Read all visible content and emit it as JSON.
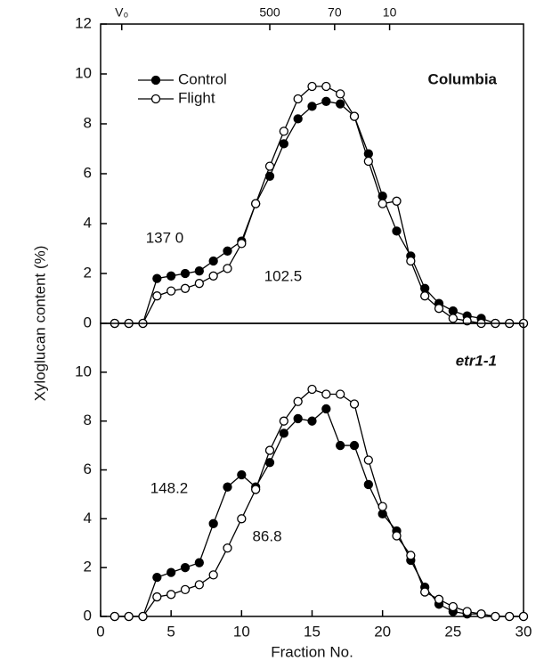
{
  "chart_data": [
    {
      "type": "line",
      "title": "Columbia",
      "ylabel": "Xyloglucan content (%)",
      "x": [
        1,
        2,
        3,
        4,
        5,
        6,
        7,
        8,
        9,
        10,
        11,
        12,
        13,
        14,
        15,
        16,
        17,
        18,
        19,
        20,
        21,
        22,
        23,
        24,
        25,
        26,
        27,
        28,
        29,
        30
      ],
      "series": [
        {
          "name": "Control",
          "color": "#000000",
          "values": [
            0,
            0,
            0,
            1.8,
            1.9,
            2.0,
            2.1,
            2.5,
            2.9,
            3.3,
            4.8,
            5.9,
            7.2,
            8.2,
            8.7,
            8.9,
            8.8,
            8.3,
            6.8,
            5.1,
            3.7,
            2.7,
            1.4,
            0.8,
            0.5,
            0.3,
            0.2,
            0,
            0,
            0
          ]
        },
        {
          "name": "Flight",
          "color": "#ffffff",
          "values": [
            0,
            0,
            0,
            1.1,
            1.3,
            1.4,
            1.6,
            1.9,
            2.2,
            3.2,
            4.8,
            6.3,
            7.7,
            9.0,
            9.5,
            9.5,
            9.2,
            8.3,
            6.5,
            4.8,
            4.9,
            2.5,
            1.1,
            0.6,
            0.2,
            0.1,
            0,
            0,
            0,
            0
          ]
        }
      ],
      "annotations": [
        "137 0",
        "102.5"
      ],
      "xlim": [
        0,
        30
      ],
      "ylim": [
        0,
        12
      ],
      "yticks": [
        0,
        2,
        4,
        6,
        8,
        10,
        12
      ],
      "top_ticks": [
        {
          "value": 1.5,
          "label": "V₀"
        },
        {
          "value": 12,
          "label": "500"
        },
        {
          "value": 16.6,
          "label": "70"
        },
        {
          "value": 20.5,
          "label": "10"
        }
      ],
      "legend": "upper left"
    },
    {
      "type": "line",
      "title": "etr1-1",
      "xlabel": "Fraction No.",
      "x": [
        1,
        2,
        3,
        4,
        5,
        6,
        7,
        8,
        9,
        10,
        11,
        12,
        13,
        14,
        15,
        16,
        17,
        18,
        19,
        20,
        21,
        22,
        23,
        24,
        25,
        26,
        27,
        28,
        29,
        30
      ],
      "series": [
        {
          "name": "Control",
          "color": "#000000",
          "values": [
            0,
            0,
            0,
            1.6,
            1.8,
            2.0,
            2.2,
            3.8,
            5.3,
            5.8,
            5.3,
            6.3,
            7.5,
            8.1,
            8.0,
            8.5,
            7.0,
            7.0,
            5.4,
            4.2,
            3.5,
            2.3,
            1.2,
            0.5,
            0.2,
            0.1,
            0.1,
            0,
            0,
            0
          ]
        },
        {
          "name": "Flight",
          "color": "#ffffff",
          "values": [
            0,
            0,
            0,
            0.8,
            0.9,
            1.1,
            1.3,
            1.7,
            2.8,
            4.0,
            5.2,
            6.8,
            8.0,
            8.8,
            9.3,
            9.1,
            9.1,
            8.7,
            6.4,
            4.5,
            3.3,
            2.5,
            1.0,
            0.7,
            0.4,
            0.2,
            0.1,
            0,
            0,
            0
          ]
        }
      ],
      "annotations": [
        "148.2",
        "86.8"
      ],
      "xlim": [
        0,
        30
      ],
      "ylim": [
        0,
        12
      ],
      "yticks": [
        0,
        2,
        4,
        6,
        8,
        10
      ],
      "xticks": [
        0,
        5,
        10,
        15,
        20,
        25,
        30
      ]
    }
  ]
}
